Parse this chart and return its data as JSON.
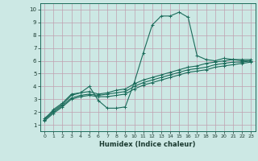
{
  "xlabel": "Humidex (Indice chaleur)",
  "bg_color": "#cce8e4",
  "grid_color": "#c0a0b0",
  "line_color": "#1a6b5a",
  "xlim": [
    -0.5,
    23.5
  ],
  "ylim": [
    0.5,
    10.5
  ],
  "xticks": [
    0,
    1,
    2,
    3,
    4,
    5,
    6,
    7,
    8,
    9,
    10,
    11,
    12,
    13,
    14,
    15,
    16,
    17,
    18,
    19,
    20,
    21,
    22,
    23
  ],
  "yticks": [
    1,
    2,
    3,
    4,
    5,
    6,
    7,
    8,
    9,
    10
  ],
  "line1_x": [
    0,
    1,
    2,
    3,
    4,
    5,
    6,
    7,
    8,
    9,
    10,
    11,
    12,
    13,
    14,
    15,
    16,
    17,
    18,
    19,
    20,
    21,
    22,
    23
  ],
  "line1_y": [
    1.4,
    2.2,
    2.7,
    3.4,
    3.5,
    4.0,
    2.9,
    2.3,
    2.3,
    2.4,
    4.3,
    6.6,
    8.8,
    9.5,
    9.5,
    9.8,
    9.4,
    6.4,
    6.1,
    6.0,
    6.2,
    6.1,
    6.0,
    6.0
  ],
  "line2_x": [
    0,
    1,
    2,
    3,
    4,
    5,
    6,
    7,
    8,
    9,
    10,
    11,
    12,
    13,
    14,
    15,
    16,
    17,
    18,
    19,
    20,
    21,
    22,
    23
  ],
  "line2_y": [
    1.5,
    2.1,
    2.6,
    3.3,
    3.5,
    3.6,
    3.4,
    3.5,
    3.7,
    3.8,
    4.2,
    4.5,
    4.7,
    4.9,
    5.1,
    5.3,
    5.5,
    5.6,
    5.8,
    5.9,
    6.0,
    6.1,
    6.1,
    6.1
  ],
  "line3_x": [
    0,
    1,
    2,
    3,
    4,
    5,
    6,
    7,
    8,
    9,
    10,
    11,
    12,
    13,
    14,
    15,
    16,
    17,
    18,
    19,
    20,
    21,
    22,
    23
  ],
  "line3_y": [
    1.4,
    2.0,
    2.5,
    3.1,
    3.3,
    3.4,
    3.3,
    3.4,
    3.5,
    3.6,
    4.0,
    4.3,
    4.5,
    4.7,
    4.9,
    5.1,
    5.3,
    5.4,
    5.5,
    5.7,
    5.8,
    5.9,
    5.9,
    6.0
  ],
  "line4_x": [
    0,
    1,
    2,
    3,
    4,
    5,
    6,
    7,
    8,
    9,
    10,
    11,
    12,
    13,
    14,
    15,
    16,
    17,
    18,
    19,
    20,
    21,
    22,
    23
  ],
  "line4_y": [
    1.3,
    1.9,
    2.4,
    3.0,
    3.2,
    3.3,
    3.2,
    3.2,
    3.3,
    3.4,
    3.8,
    4.1,
    4.3,
    4.5,
    4.7,
    4.9,
    5.1,
    5.2,
    5.3,
    5.5,
    5.6,
    5.7,
    5.8,
    5.9
  ]
}
